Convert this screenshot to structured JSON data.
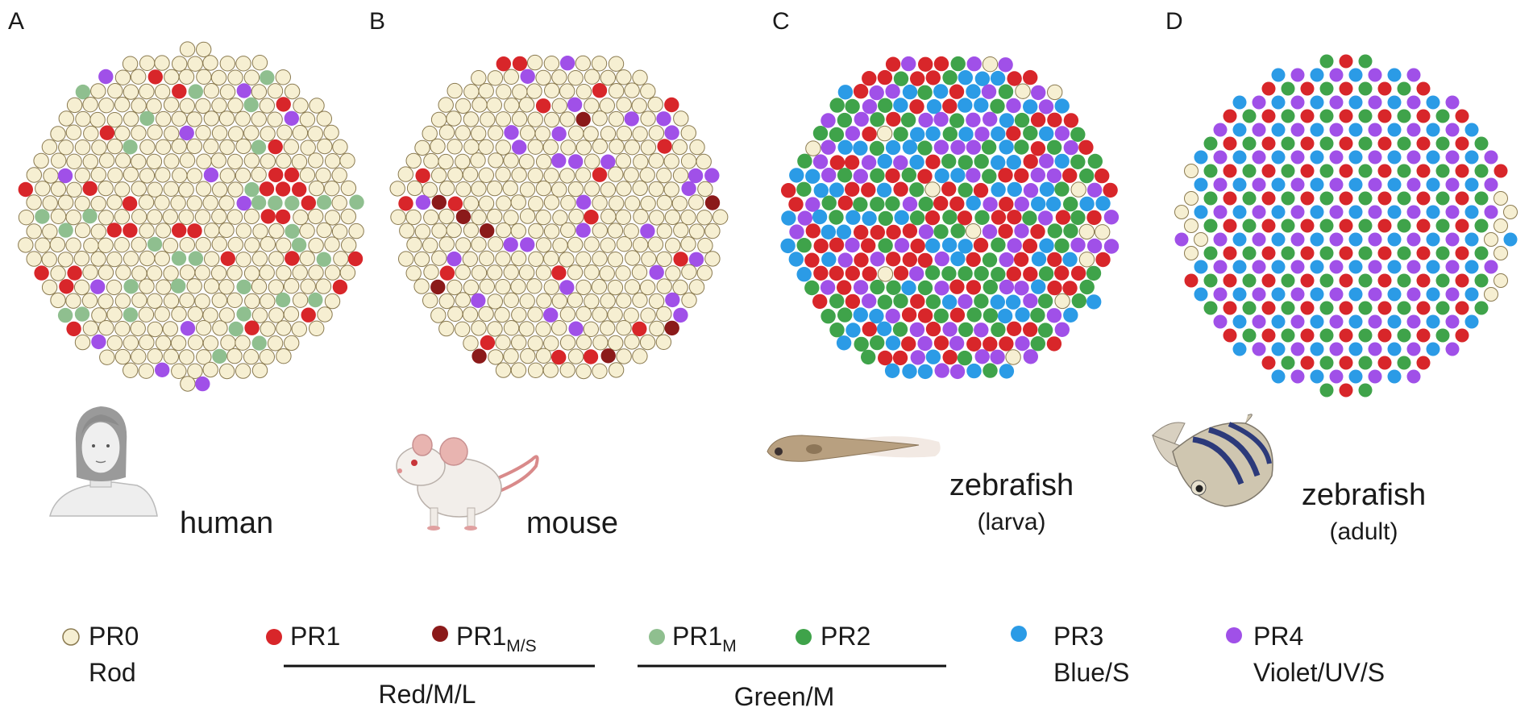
{
  "panels": [
    {
      "letter": "A",
      "species": "human"
    },
    {
      "letter": "B",
      "species": "mouse"
    },
    {
      "letter": "C",
      "species": "zebrafish",
      "stage": "(larva)"
    },
    {
      "letter": "D",
      "species": "zebrafish",
      "stage": "(adult)"
    }
  ],
  "legend": {
    "items": [
      {
        "label": "PR0",
        "description": "Rod"
      },
      {
        "label": "PR1"
      },
      {
        "label": "PR1",
        "subscript": "M/S"
      },
      {
        "label": "PR1",
        "subscript": "M"
      },
      {
        "label": "PR2"
      },
      {
        "label": "PR3",
        "description": "Blue/S"
      },
      {
        "label": "PR4",
        "description": "Violet/UV/S"
      }
    ],
    "groups": [
      "Red/M/L",
      "Green/M"
    ]
  }
}
